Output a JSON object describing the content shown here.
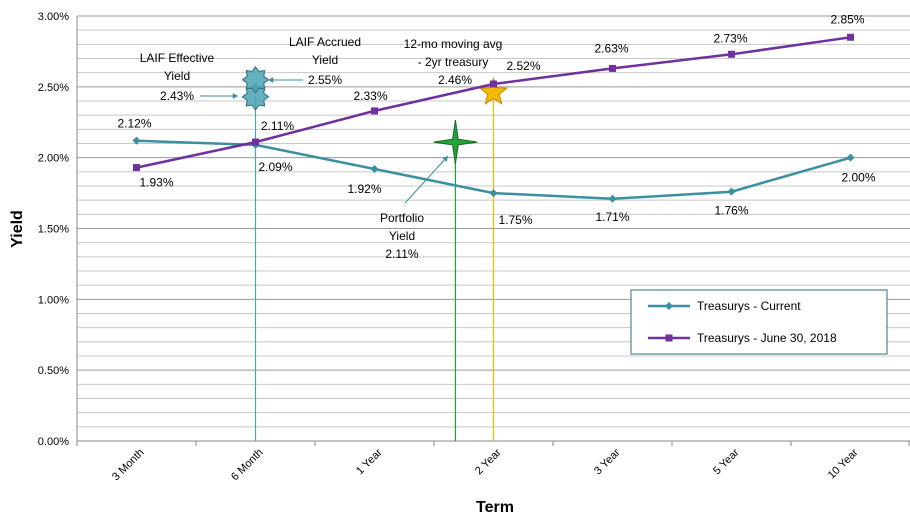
{
  "chart_data": {
    "type": "line",
    "xlabel": "Term",
    "ylabel": "Yield",
    "ylim": [
      0,
      3
    ],
    "y_ticks": [
      "0.00%",
      "0.50%",
      "1.00%",
      "1.50%",
      "2.00%",
      "2.50%",
      "3.00%"
    ],
    "categories": [
      "3 Month",
      "6 Month",
      "1 Year",
      "2 Year",
      "3 Year",
      "5 Year",
      "10 Year"
    ],
    "grid": "horizontal",
    "legend_position": "right",
    "series": [
      {
        "name": "Treasurys - Current",
        "color": "#3a8fa0",
        "marker": "diamond",
        "values": [
          2.12,
          2.09,
          1.92,
          1.75,
          1.71,
          1.76,
          2.0
        ],
        "labels": [
          "2.12%",
          "2.09%",
          "1.92%",
          "1.75%",
          "1.71%",
          "1.76%",
          "2.00%"
        ]
      },
      {
        "name": "Treasurys - June 30, 2018",
        "color": "#7030a0",
        "marker": "square",
        "values": [
          1.93,
          2.11,
          2.33,
          2.52,
          2.63,
          2.73,
          2.85
        ],
        "labels": [
          "1.93%",
          "2.11%",
          "2.33%",
          "2.52%",
          "2.63%",
          "2.73%",
          "2.85%"
        ]
      }
    ],
    "reference_points": [
      {
        "name": "laif-effective",
        "label_lines": [
          "LAIF Effective",
          "Yield",
          "2.43%"
        ],
        "x_category": 1,
        "value": 2.43,
        "color": "#4aa3b5",
        "shape": "star8"
      },
      {
        "name": "laif-accrued",
        "label_lines": [
          "LAIF Accrued",
          "Yield",
          "2.55%"
        ],
        "x_category": 1,
        "value": 2.55,
        "color": "#4aa3b5",
        "shape": "star8"
      },
      {
        "name": "portfolio",
        "label_lines": [
          "Portfolio",
          "Yield",
          "2.11%"
        ],
        "x_category": 2.68,
        "value": 2.11,
        "color": "#22a33a",
        "shape": "star4"
      },
      {
        "name": "moving-avg",
        "label_lines": [
          "12-mo moving avg",
          "- 2yr treasury",
          "2.46%"
        ],
        "x_category": 3,
        "value": 2.46,
        "color": "#f5b800",
        "shape": "star5"
      }
    ]
  }
}
